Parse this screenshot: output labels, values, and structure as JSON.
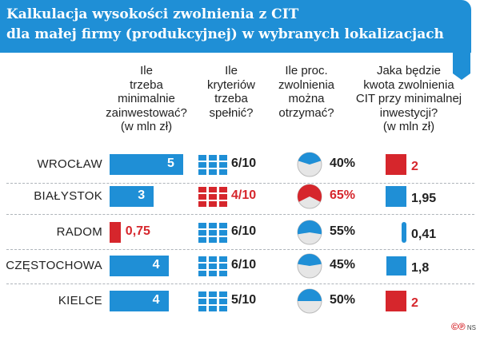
{
  "title_line1": "Kalkulacja wysokości zwolnienia z CIT",
  "title_line2": "dla małej firmy (produkcyjnej) w wybranych lokalizacjach",
  "headers": {
    "investment": [
      "Ile",
      "trzeba",
      "minimalnie",
      "zainwestować?",
      "(w mln zł)"
    ],
    "criteria": [
      "Ile",
      "kryteriów",
      "trzeba",
      "spełnić?"
    ],
    "percent": [
      "Ile proc.",
      "zwolnienia",
      "można",
      "otrzymać?"
    ],
    "amount": [
      "Jaka będzie",
      "kwota zwolnienia",
      "CIT przy minimalnej",
      "inwestycji?",
      "(w mln zł)"
    ]
  },
  "colors": {
    "blue": "#1f8fd6",
    "red": "#d6262c",
    "grey": "#999999"
  },
  "chart_data": {
    "type": "table",
    "rows": [
      {
        "city": "WROCŁAW",
        "investment": 5,
        "investment_label": "5",
        "criteria": 6,
        "criteria_label": "6/10",
        "percent": 40,
        "percent_label": "40%",
        "amount": 2,
        "amount_label": "2",
        "investment_highlight": false,
        "criteria_highlight": false,
        "percent_highlight": false,
        "amount_highlight": true
      },
      {
        "city": "BIAŁYSTOK",
        "investment": 3,
        "investment_label": "3",
        "criteria": 4,
        "criteria_label": "4/10",
        "percent": 65,
        "percent_label": "65%",
        "amount": 1.95,
        "amount_label": "1,95",
        "investment_highlight": false,
        "criteria_highlight": true,
        "percent_highlight": true,
        "amount_highlight": false
      },
      {
        "city": "RADOM",
        "investment": 0.75,
        "investment_label": "0,75",
        "criteria": 6,
        "criteria_label": "6/10",
        "percent": 55,
        "percent_label": "55%",
        "amount": 0.41,
        "amount_label": "0,41",
        "investment_highlight": true,
        "criteria_highlight": false,
        "percent_highlight": false,
        "amount_highlight": false
      },
      {
        "city": "CZĘSTOCHOWA",
        "investment": 4,
        "investment_label": "4",
        "criteria": 6,
        "criteria_label": "6/10",
        "percent": 45,
        "percent_label": "45%",
        "amount": 1.8,
        "amount_label": "1,8",
        "investment_highlight": false,
        "criteria_highlight": false,
        "percent_highlight": false,
        "amount_highlight": false
      },
      {
        "city": "KIELCE",
        "investment": 4,
        "investment_label": "4",
        "criteria": 5,
        "criteria_label": "5/10",
        "percent": 50,
        "percent_label": "50%",
        "amount": 2,
        "amount_label": "2",
        "investment_highlight": false,
        "criteria_highlight": false,
        "percent_highlight": false,
        "amount_highlight": true
      }
    ],
    "investment_max": 5,
    "criteria_total": 10
  },
  "footer": {
    "copyright": "©℗",
    "author": "NS"
  }
}
